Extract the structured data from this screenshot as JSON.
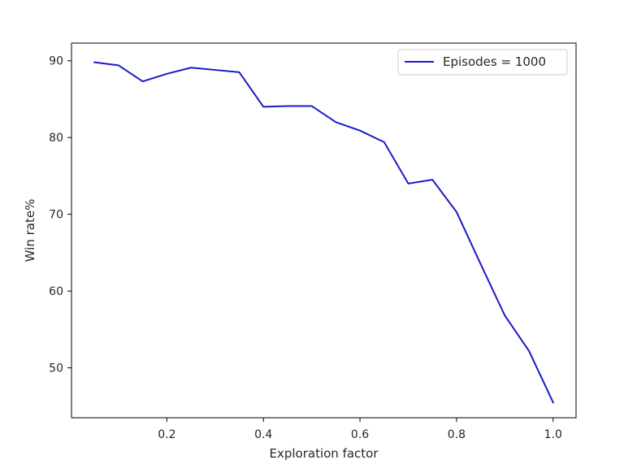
{
  "chart_data": {
    "type": "line",
    "title": "",
    "xlabel": "Exploration factor",
    "ylabel": "Win rate%",
    "xlim": [
      0.0025,
      1.0475
    ],
    "ylim": [
      43.5,
      92.3
    ],
    "xticks": [
      0.2,
      0.4,
      0.6,
      0.8,
      1.0
    ],
    "xtick_labels": [
      "0.2",
      "0.4",
      "0.6",
      "0.8",
      "1.0"
    ],
    "yticks": [
      50,
      60,
      70,
      80,
      90
    ],
    "ytick_labels": [
      "50",
      "60",
      "70",
      "80",
      "90"
    ],
    "grid": false,
    "legend": {
      "position": "top-right"
    },
    "series": [
      {
        "name": "Episodes = 1000",
        "color": "#1a1ac8",
        "x": [
          0.05,
          0.1,
          0.15,
          0.2,
          0.25,
          0.3,
          0.35,
          0.4,
          0.45,
          0.5,
          0.55,
          0.6,
          0.65,
          0.7,
          0.75,
          0.8,
          0.85,
          0.9,
          0.95,
          1.0
        ],
        "y": [
          89.8,
          89.4,
          87.3,
          88.3,
          89.1,
          88.8,
          88.5,
          84.0,
          84.1,
          84.1,
          82.0,
          80.9,
          79.4,
          74.0,
          74.5,
          70.3,
          63.5,
          56.8,
          52.2,
          45.5
        ]
      }
    ]
  }
}
